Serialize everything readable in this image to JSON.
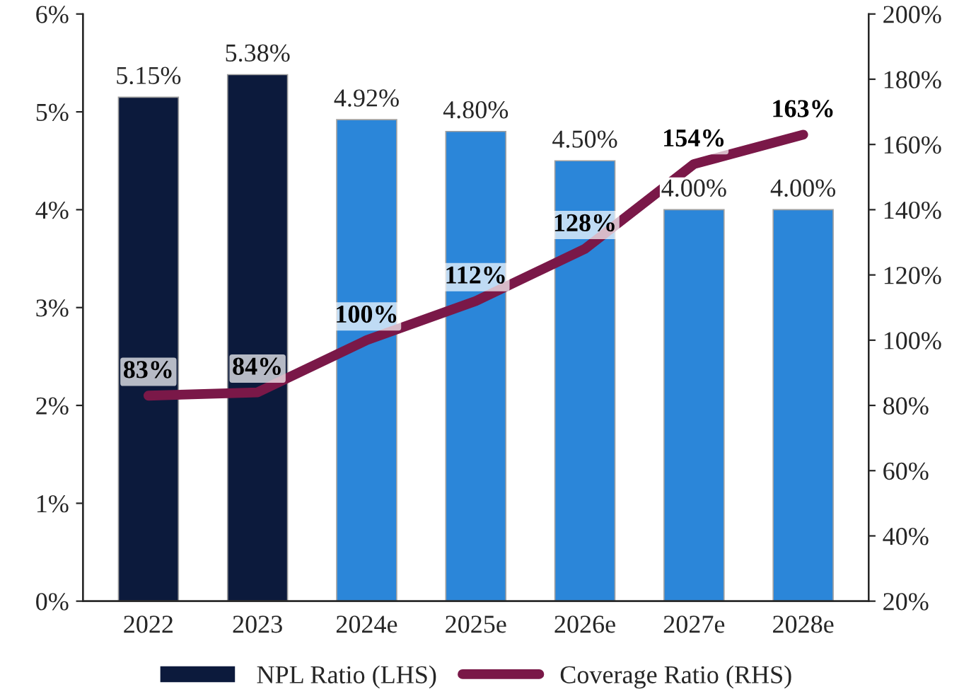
{
  "chart_data": {
    "type": "bar",
    "categories": [
      "2022",
      "2023",
      "2024e",
      "2025e",
      "2026e",
      "2027e",
      "2028e"
    ],
    "series": [
      {
        "name": "NPL Ratio (LHS)",
        "colors": [
          "#0c1a3c",
          "#0c1a3c",
          "#2b86d9",
          "#2b86d9",
          "#2b86d9",
          "#2b86d9",
          "#2b86d9"
        ],
        "values": [
          5.15,
          5.38,
          4.92,
          4.8,
          4.5,
          4.0,
          4.0
        ],
        "value_labels": [
          "5.15%",
          "5.38%",
          "4.92%",
          "4.80%",
          "4.50%",
          "4.00%",
          "4.00%"
        ]
      },
      {
        "name": "Coverage Ratio (RHS)",
        "type": "line",
        "axis": "y2",
        "color": "#7a1848",
        "values": [
          83,
          84,
          100,
          112,
          128,
          154,
          163
        ],
        "value_labels": [
          "83%",
          "84%",
          "100%",
          "112%",
          "128%",
          "154%",
          "163%"
        ]
      }
    ],
    "ylim": [
      0,
      6
    ],
    "yticks": [
      {
        "value": 0,
        "label": "0%"
      },
      {
        "value": 1,
        "label": "1%"
      },
      {
        "value": 2,
        "label": "2%"
      },
      {
        "value": 3,
        "label": "3%"
      },
      {
        "value": 4,
        "label": "4%"
      },
      {
        "value": 5,
        "label": "5%"
      },
      {
        "value": 6,
        "label": "6%"
      }
    ],
    "y2lim": [
      20,
      200
    ],
    "y2ticks": [
      {
        "value": 20,
        "label": "20%"
      },
      {
        "value": 40,
        "label": "40%"
      },
      {
        "value": 60,
        "label": "60%"
      },
      {
        "value": 80,
        "label": "80%"
      },
      {
        "value": 100,
        "label": "100%"
      },
      {
        "value": 120,
        "label": "120%"
      },
      {
        "value": 140,
        "label": "140%"
      },
      {
        "value": 160,
        "label": "160%"
      },
      {
        "value": 180,
        "label": "180%"
      },
      {
        "value": 200,
        "label": "200%"
      }
    ],
    "legend": "bottom",
    "grid": false
  }
}
